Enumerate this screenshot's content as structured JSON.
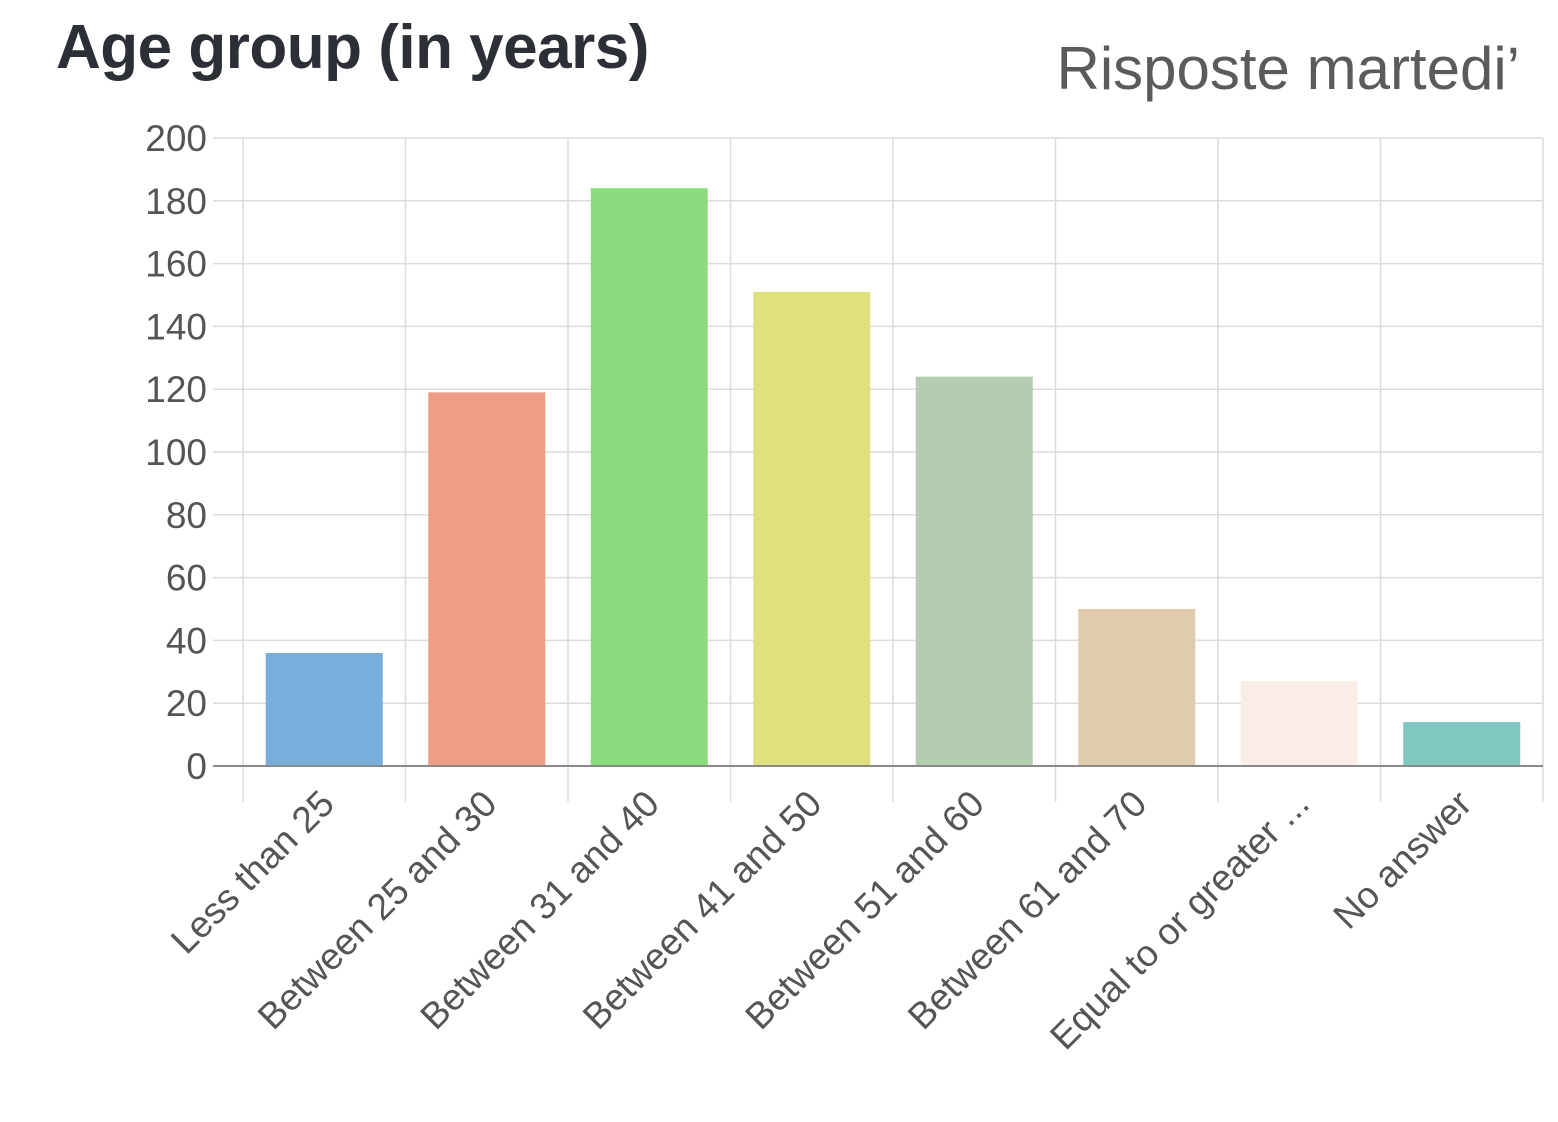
{
  "chart_data": {
    "type": "bar",
    "title": "Age group (in years)",
    "annotation": "Risposte martedi’",
    "categories": [
      "Less than 25",
      "Between 25 and 30",
      "Between 31 and 40",
      "Between 41 and 50",
      "Between 51 and 60",
      "Between 61 and 70",
      "Equal to or greater ...",
      "No answer"
    ],
    "values": [
      36,
      119,
      184,
      151,
      124,
      50,
      27,
      14
    ],
    "colors": [
      "#78aedb",
      "#ef9d84",
      "#8bdc7e",
      "#e0e07e",
      "#b4cdb0",
      "#e0cbad",
      "#f9eee7",
      "#7ec8c0"
    ],
    "ylim": [
      0,
      200
    ],
    "yticks": [
      0,
      20,
      40,
      60,
      80,
      100,
      120,
      140,
      160,
      180,
      200
    ],
    "xlabel": "",
    "ylabel": "",
    "grid": true,
    "legend": "none"
  }
}
